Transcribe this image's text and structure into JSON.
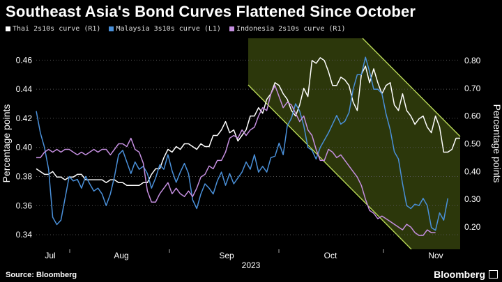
{
  "title": "Southeast Asia's Bond Curves Flattened Since October",
  "source": "Source: Bloomberg",
  "brand": "Bloomberg",
  "legend": [
    {
      "label": "Thai 2s10s curve (R1)",
      "color": "#ffffff"
    },
    {
      "label": "Malaysia 3s10s curve (L1)",
      "color": "#4a90d9"
    },
    {
      "label": "Indonesia 2s10s curve (R1)",
      "color": "#c58fe0"
    }
  ],
  "chart_data": {
    "type": "line",
    "x_unit": "trading day index",
    "month_labels": [
      "Jul",
      "Aug",
      "Sep",
      "Oct",
      "Nov"
    ],
    "year_label": "2023",
    "left_axis": {
      "label": "Percentage points",
      "ticks": [
        0.34,
        0.36,
        0.38,
        0.4,
        0.42,
        0.44,
        0.46
      ],
      "range": [
        0.33,
        0.475
      ]
    },
    "right_axis": {
      "label": "Percentage points",
      "ticks": [
        "0.20",
        "0.30",
        "0.40",
        "0.50",
        "0.60",
        "0.70",
        "0.80"
      ],
      "range": [
        0.12,
        0.88
      ]
    },
    "series": [
      {
        "name": "Thai 2s10s curve (R1)",
        "axis": "right",
        "color": "#ffffff",
        "values": [
          0.41,
          0.4,
          0.39,
          0.39,
          0.4,
          0.38,
          0.38,
          0.37,
          0.38,
          0.38,
          0.39,
          0.39,
          0.37,
          0.37,
          0.37,
          0.37,
          0.37,
          0.36,
          0.37,
          0.37,
          0.36,
          0.36,
          0.35,
          0.35,
          0.35,
          0.35,
          0.36,
          0.36,
          0.39,
          0.41,
          0.41,
          0.45,
          0.48,
          0.47,
          0.49,
          0.48,
          0.5,
          0.5,
          0.49,
          0.48,
          0.5,
          0.49,
          0.49,
          0.53,
          0.53,
          0.55,
          0.58,
          0.54,
          0.55,
          0.51,
          0.53,
          0.55,
          0.6,
          0.6,
          0.63,
          0.61,
          0.66,
          0.68,
          0.72,
          0.71,
          0.68,
          0.66,
          0.62,
          0.6,
          0.64,
          0.7,
          0.67,
          0.8,
          0.79,
          0.81,
          0.8,
          0.76,
          0.71,
          0.71,
          0.74,
          0.73,
          0.71,
          0.65,
          0.62,
          0.75,
          0.78,
          0.72,
          0.77,
          0.72,
          0.68,
          0.71,
          0.72,
          0.64,
          0.62,
          0.68,
          0.62,
          0.6,
          0.57,
          0.59,
          0.6,
          0.56,
          0.54,
          0.6,
          0.56,
          0.47,
          0.47,
          0.48,
          0.52,
          0.52
        ]
      },
      {
        "name": "Malaysia 3s10s curve (L1)",
        "axis": "left",
        "color": "#4a90d9",
        "values": [
          0.425,
          0.41,
          0.4,
          0.385,
          0.352,
          0.347,
          0.35,
          0.365,
          0.38,
          0.377,
          0.378,
          0.372,
          0.38,
          0.375,
          0.37,
          0.372,
          0.368,
          0.36,
          0.368,
          0.38,
          0.395,
          0.398,
          0.39,
          0.382,
          0.39,
          0.385,
          0.387,
          0.382,
          0.372,
          0.379,
          0.388,
          0.385,
          0.395,
          0.384,
          0.376,
          0.383,
          0.389,
          0.382,
          0.364,
          0.358,
          0.368,
          0.375,
          0.372,
          0.368,
          0.377,
          0.383,
          0.374,
          0.382,
          0.375,
          0.379,
          0.383,
          0.39,
          0.385,
          0.395,
          0.383,
          0.387,
          0.383,
          0.393,
          0.394,
          0.403,
          0.395,
          0.415,
          0.42,
          0.43,
          0.425,
          0.415,
          0.4,
          0.398,
          0.392,
          0.4,
          0.405,
          0.41,
          0.416,
          0.422,
          0.416,
          0.418,
          0.424,
          0.44,
          0.45,
          0.45,
          0.462,
          0.452,
          0.44,
          0.44,
          0.437,
          0.423,
          0.412,
          0.397,
          0.392,
          0.375,
          0.36,
          0.358,
          0.361,
          0.36,
          0.365,
          0.36,
          0.345,
          0.343,
          0.355,
          0.35,
          0.365
        ]
      },
      {
        "name": "Indonesia 2s10s curve (R1)",
        "axis": "right",
        "color": "#c58fe0",
        "values": [
          0.45,
          0.45,
          0.47,
          0.48,
          0.47,
          0.48,
          0.47,
          0.48,
          0.48,
          0.47,
          0.46,
          0.47,
          0.46,
          0.47,
          0.48,
          0.47,
          0.48,
          0.48,
          0.46,
          0.48,
          0.5,
          0.5,
          0.49,
          0.52,
          0.48,
          0.47,
          0.43,
          0.33,
          0.29,
          0.29,
          0.32,
          0.34,
          0.36,
          0.32,
          0.34,
          0.32,
          0.31,
          0.33,
          0.31,
          0.34,
          0.38,
          0.39,
          0.42,
          0.41,
          0.44,
          0.44,
          0.47,
          0.52,
          0.53,
          0.52,
          0.55,
          0.53,
          0.55,
          0.56,
          0.6,
          0.63,
          0.62,
          0.68,
          0.71,
          0.67,
          0.63,
          0.65,
          0.64,
          0.61,
          0.58,
          0.6,
          0.55,
          0.53,
          0.48,
          0.44,
          0.44,
          0.48,
          0.47,
          0.45,
          0.46,
          0.44,
          0.42,
          0.4,
          0.38,
          0.35,
          0.3,
          0.26,
          0.25,
          0.23,
          0.24,
          0.23,
          0.22,
          0.21,
          0.2,
          0.19,
          0.21,
          0.2,
          0.18,
          0.17,
          0.17,
          0.19,
          0.18,
          0.18
        ]
      }
    ],
    "annotation": "shaded downward channel from September to November",
    "grid": "horizontal dotted",
    "legend_position": "top-left"
  }
}
